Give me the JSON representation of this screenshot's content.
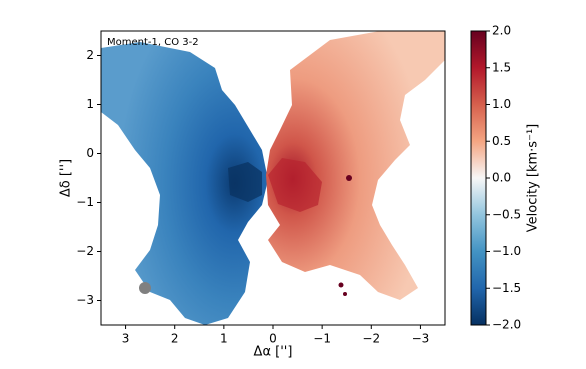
{
  "chart_data": {
    "type": "heatmap",
    "annotation": "Moment-1, CO 3-2",
    "xlabel": "Δα ['']",
    "ylabel": "Δδ ['']",
    "xlim": [
      3.5,
      -3.5
    ],
    "xticks": [
      3,
      2,
      1,
      0,
      {
        "value": -1,
        "label": "−1"
      },
      {
        "value": -2,
        "label": "−2"
      },
      {
        "value": -3,
        "label": "−3"
      }
    ],
    "ylim": [
      -3.5,
      2.5
    ],
    "yticks": [
      2,
      1,
      0,
      {
        "value": -1,
        "label": "−1"
      },
      {
        "value": -2,
        "label": "−2"
      },
      {
        "value": -3,
        "label": "−3"
      }
    ],
    "colorbar_label": "Velocity [km·s⁻¹]",
    "clim": [
      -2,
      2
    ],
    "cticks": [
      {
        "value": 2,
        "label": "2.0"
      },
      {
        "value": 1.5,
        "label": "1.5"
      },
      {
        "value": 1,
        "label": "1.0"
      },
      {
        "value": 0.5,
        "label": "0.5"
      },
      {
        "value": 0,
        "label": "0.0"
      },
      {
        "value": -0.5,
        "label": "−0.5"
      },
      {
        "value": -1,
        "label": "−1.0"
      },
      {
        "value": -1.5,
        "label": "−1.5"
      },
      {
        "value": -2,
        "label": "−2.0"
      }
    ],
    "colormap": "RdBu_r",
    "colormap_colors": [
      "#053061",
      "#2166ac",
      "#4393c3",
      "#92c5de",
      "#f7f7f7",
      "#f4a582",
      "#d6604d",
      "#b2182b",
      "#67001f"
    ]
  }
}
